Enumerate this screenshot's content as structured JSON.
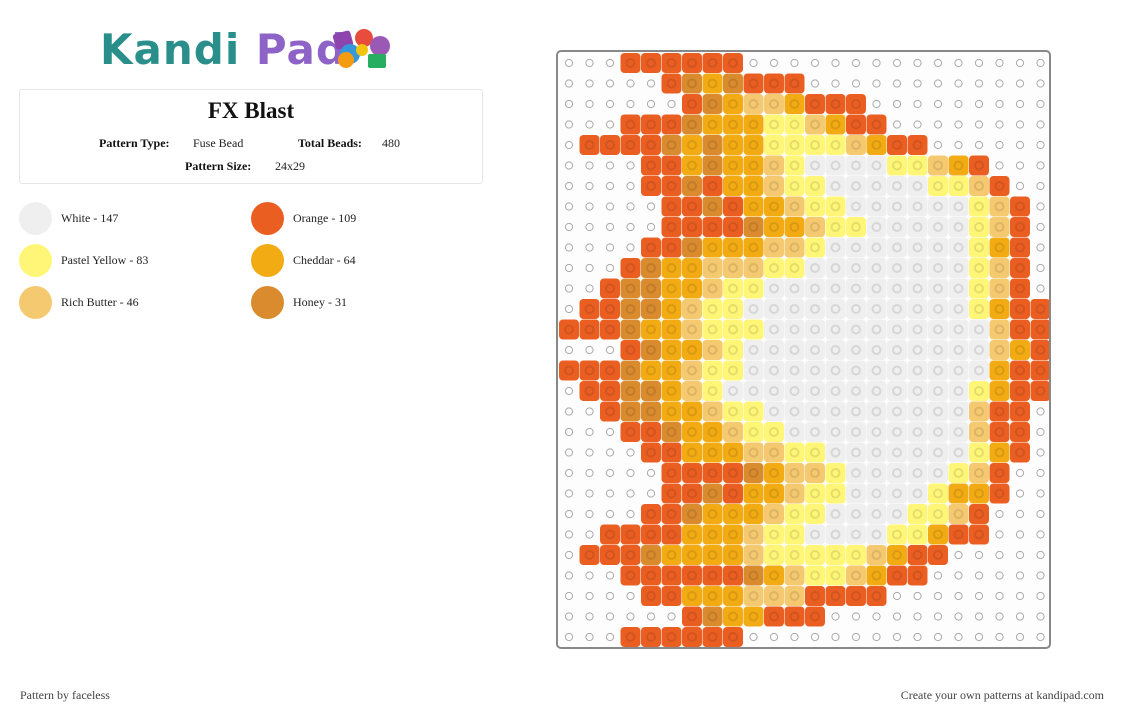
{
  "brand": {
    "name_part1": "Kandi",
    "name_part2": "Pad"
  },
  "pattern": {
    "title": "FX Blast",
    "type_label": "Pattern Type:",
    "type_value": "Fuse Bead",
    "total_label": "Total Beads:",
    "total_value": "480",
    "size_label": "Pattern Size:",
    "size_value": "24x29"
  },
  "legend": [
    {
      "label": "White - 147",
      "color": "#efefef"
    },
    {
      "label": "Orange - 109",
      "color": "#ea5e22"
    },
    {
      "label": "Pastel Yellow - 83",
      "color": "#fff677"
    },
    {
      "label": "Cheddar - 64",
      "color": "#f2ab13"
    },
    {
      "label": "Rich Butter - 46",
      "color": "#f5c970"
    },
    {
      "label": "Honey - 31",
      "color": "#d98b2e"
    }
  ],
  "grid": {
    "palette_key": {
      ".": "empty",
      "W": "#efefef",
      "O": "#ea5e22",
      "Y": "#fff677",
      "C": "#f2ab13",
      "B": "#f5c970",
      "H": "#d98b2e"
    },
    "rows": [
      "...OOOOOO...............",
      ".....OHCHOOO............",
      "......OHCBBCOOO.........",
      "...OOOHCCCYYBCOO........",
      ".OOOOHCHCCYYYYBCOO......",
      "....OOCHCCBYWWWWYYBCO...",
      "....OOHOCCBYYWWWWWYYBO..",
      ".....OOHOCCBYYWWWWWWYBO.",
      ".....OOOOHCCBYYWWWWWYBO.",
      "....OOHCCCBBYWWWWWWWYCO.",
      "...OHCCBBBYYWWWWWWWWYBO.",
      "..OHHCCBYYWWWWWWWWWWYBO.",
      ".OOHHCBYYWWWWWWWWWWWYCOO",
      "OOOHCCBYYYWWWWWWWWWWWBOO",
      "...OHCCBYWWWWWWWWWWWWBCO",
      "OOOHCCBYYWWWWWWWWWWWWCOO",
      ".OOHHCBYWWWWWWWWWWWWYCOO",
      "..OHHCCBYYWWWWWWWWWWBOO.",
      "...OOHCCBYYWWWWWWWWWBOO.",
      "....OOCCCBBYYWWWWWWWYCO.",
      ".....OOOOHCBBYWWWWWYBO..",
      ".....OOHOCCBYYWWWWYCCO..",
      "....OOHCCCBYYWWWWYYBO...",
      "..OOOOCCCBYYWWWWYYCOO...",
      ".OOOHCCCCBYYYYYBCOO.....",
      "...OOOOOOHCBYYBCOO......",
      "....OOCCCBBBOOOO........",
      "......OHCCOOO...........",
      "...OOOOOO..............."
    ]
  },
  "footer": {
    "credit": "Pattern by faceless",
    "promo": "Create your own patterns at kandipad.com"
  }
}
